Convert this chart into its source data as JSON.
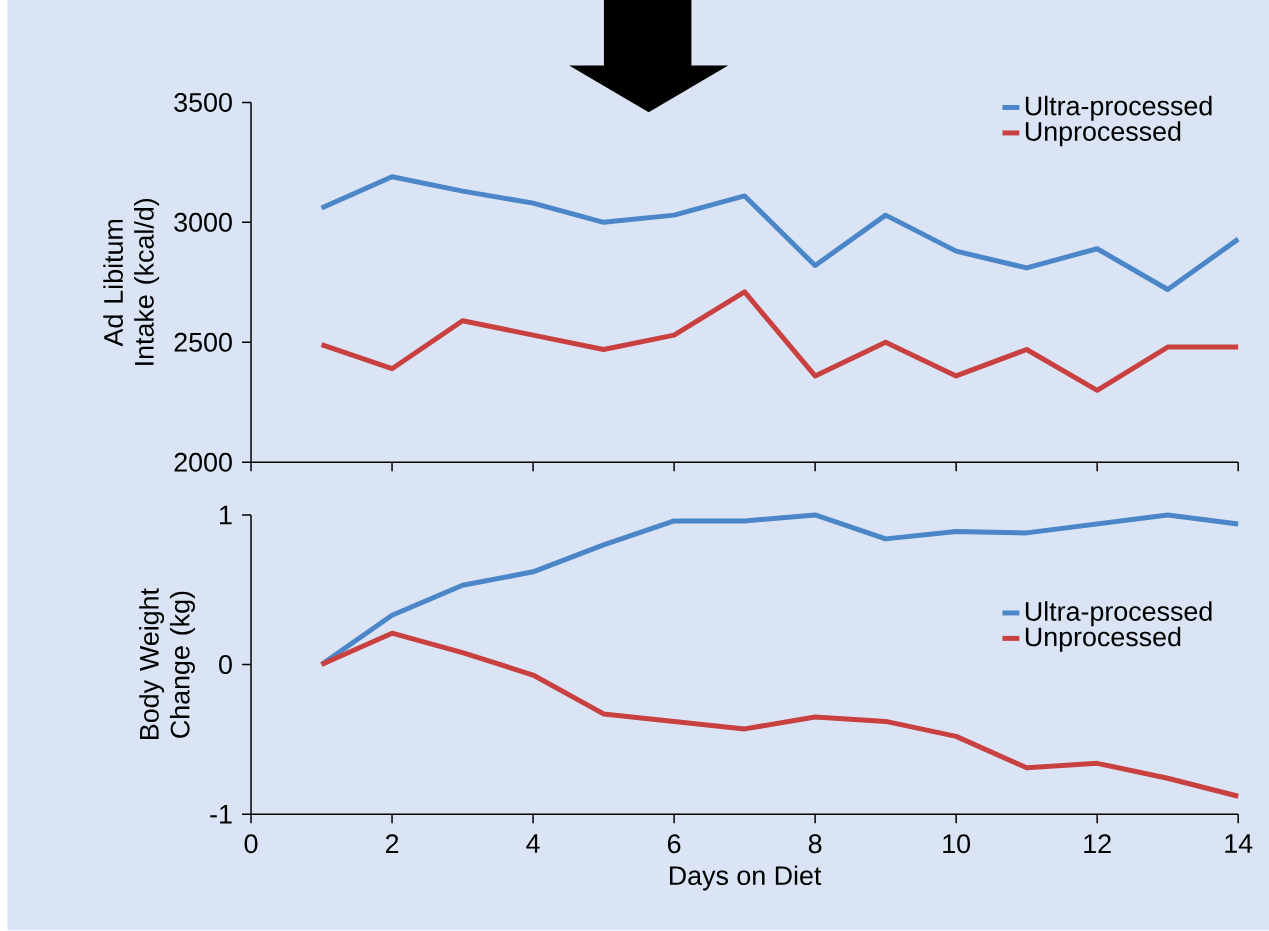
{
  "chart_data": [
    {
      "type": "line",
      "ylabel": "Ad Libitum Intake (kcal/d)",
      "xlim": [
        0,
        14
      ],
      "xticks": [
        0,
        2,
        4,
        6,
        8,
        10,
        12,
        14
      ],
      "ylim": [
        2000,
        3500
      ],
      "yticks": [
        2000,
        2500,
        3000,
        3500
      ],
      "tick_labels": "y",
      "legend": "top right",
      "marker": "none",
      "grid": false,
      "series": [
        {
          "name": "Ultra-processed",
          "color": "#4a86c8",
          "x": [
            1,
            2,
            3,
            4,
            5,
            6,
            7,
            8,
            9,
            10,
            11,
            12,
            13,
            14
          ],
          "values": [
            3060,
            3190,
            3130,
            3080,
            3000,
            3030,
            3110,
            2820,
            3030,
            2880,
            2810,
            2890,
            2720,
            2930
          ]
        },
        {
          "name": "Unprocessed",
          "color": "#c94040",
          "x": [
            1,
            2,
            3,
            4,
            5,
            6,
            7,
            8,
            9,
            10,
            11,
            12,
            13,
            14
          ],
          "values": [
            2490,
            2390,
            2590,
            2530,
            2470,
            2530,
            2710,
            2360,
            2500,
            2360,
            2470,
            2300,
            2480,
            2480
          ]
        }
      ]
    },
    {
      "type": "line",
      "xlabel": "Days on Diet",
      "ylabel": "Body Weight Change (kg)",
      "xlim": [
        0,
        14
      ],
      "xticks": [
        0,
        2,
        4,
        6,
        8,
        10,
        12,
        14
      ],
      "ylim": [
        -1,
        1
      ],
      "yticks": [
        -1,
        0,
        1
      ],
      "legend": "right",
      "marker": "none",
      "grid": false,
      "series": [
        {
          "name": "Ultra-processed",
          "color": "#4a86c8",
          "x": [
            1,
            2,
            3,
            4,
            5,
            6,
            7,
            8,
            9,
            10,
            11,
            12,
            13,
            14
          ],
          "values": [
            0,
            0.33,
            0.53,
            0.62,
            0.8,
            0.96,
            0.96,
            1.0,
            0.84,
            0.89,
            0.88,
            0.94,
            1.0,
            0.94
          ]
        },
        {
          "name": "Unprocessed",
          "color": "#c94040",
          "x": [
            1,
            2,
            3,
            4,
            5,
            6,
            7,
            8,
            9,
            10,
            11,
            12,
            13,
            14
          ],
          "values": [
            0,
            0.21,
            0.08,
            -0.07,
            -0.33,
            -0.38,
            -0.43,
            -0.35,
            -0.38,
            -0.48,
            -0.69,
            -0.66,
            -0.76,
            -0.88
          ]
        }
      ]
    }
  ]
}
